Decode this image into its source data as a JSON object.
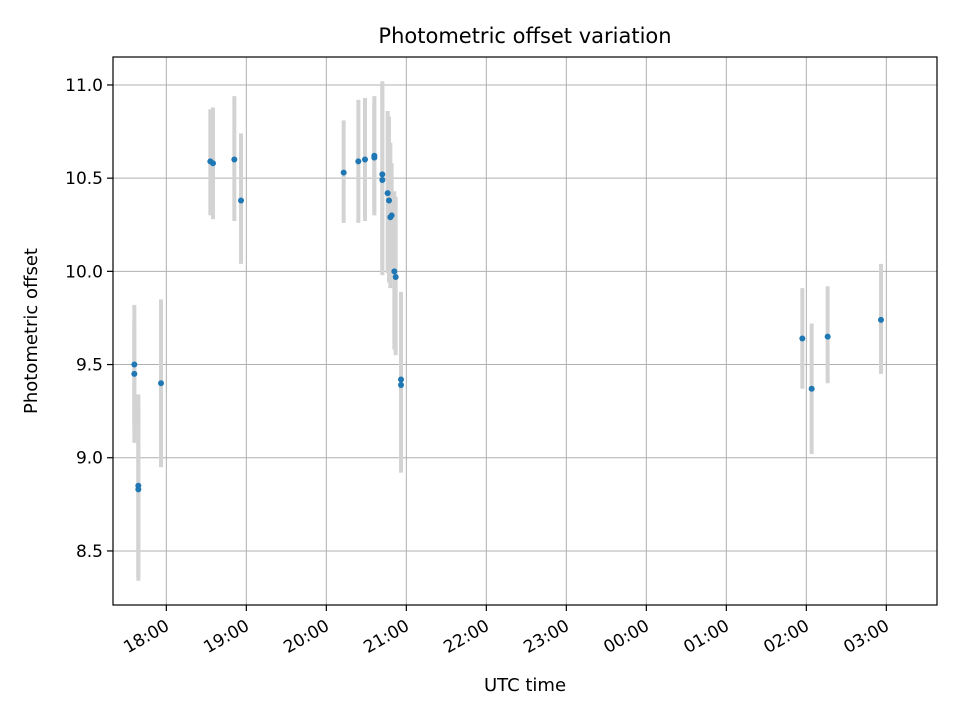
{
  "chart_data": {
    "type": "scatter",
    "title": "Photometric offset variation",
    "xlabel": "UTC time",
    "ylabel": "Photometric offset",
    "grid": true,
    "x_unit": "UTC time (clock times past midnight continue the same night)",
    "xlim": [
      "17:20",
      "27:38"
    ],
    "ylim": [
      8.21,
      11.15
    ],
    "x_ticks": [
      "18:00",
      "19:00",
      "20:00",
      "21:00",
      "22:00",
      "23:00",
      "00:00",
      "01:00",
      "02:00",
      "03:00"
    ],
    "y_ticks": [
      "8.5",
      "9.0",
      "9.5",
      "10.0",
      "10.5",
      "11.0"
    ],
    "colors": {
      "marker": "#1f77b4",
      "errorbar": "#d3d3d3",
      "grid": "#b0b0b0"
    },
    "series": [
      {
        "points": [
          {
            "time": "17:36",
            "y": 9.5,
            "err_low": 9.08,
            "err_high": 9.82
          },
          {
            "time": "17:36",
            "y": 9.45,
            "err_low": 9.17,
            "err_high": 9.73
          },
          {
            "time": "17:39",
            "y": 8.85,
            "err_low": 8.34,
            "err_high": 9.34
          },
          {
            "time": "17:39",
            "y": 8.83,
            "err_low": 8.36,
            "err_high": 9.3
          },
          {
            "time": "17:56",
            "y": 9.4,
            "err_low": 8.95,
            "err_high": 9.85
          },
          {
            "time": "18:33",
            "y": 10.59,
            "err_low": 10.3,
            "err_high": 10.87
          },
          {
            "time": "18:35",
            "y": 10.58,
            "err_low": 10.28,
            "err_high": 10.88
          },
          {
            "time": "18:51",
            "y": 10.6,
            "err_low": 10.27,
            "err_high": 10.94
          },
          {
            "time": "18:56",
            "y": 10.38,
            "err_low": 10.04,
            "err_high": 10.74
          },
          {
            "time": "20:13",
            "y": 10.53,
            "err_low": 10.26,
            "err_high": 10.81
          },
          {
            "time": "20:24",
            "y": 10.59,
            "err_low": 10.26,
            "err_high": 10.92
          },
          {
            "time": "20:29",
            "y": 10.6,
            "err_low": 10.27,
            "err_high": 10.93
          },
          {
            "time": "20:36",
            "y": 10.62,
            "err_low": 10.3,
            "err_high": 10.94
          },
          {
            "time": "20:36",
            "y": 10.61,
            "err_low": 10.31,
            "err_high": 10.9
          },
          {
            "time": "20:42",
            "y": 10.52,
            "err_low": 10.0,
            "err_high": 11.02
          },
          {
            "time": "20:42",
            "y": 10.49,
            "err_low": 9.98,
            "err_high": 11.0
          },
          {
            "time": "20:46",
            "y": 10.42,
            "err_low": 9.99,
            "err_high": 10.86
          },
          {
            "time": "20:47",
            "y": 10.38,
            "err_low": 9.94,
            "err_high": 10.83
          },
          {
            "time": "20:48",
            "y": 10.29,
            "err_low": 9.91,
            "err_high": 10.69
          },
          {
            "time": "20:49",
            "y": 10.3,
            "err_low": 10.02,
            "err_high": 10.58
          },
          {
            "time": "20:51",
            "y": 10.0,
            "err_low": 9.58,
            "err_high": 10.43
          },
          {
            "time": "20:52",
            "y": 9.97,
            "err_low": 9.55,
            "err_high": 10.4
          },
          {
            "time": "20:56",
            "y": 9.42,
            "err_low": 8.92,
            "err_high": 9.89
          },
          {
            "time": "20:56",
            "y": 9.39,
            "err_low": 8.92,
            "err_high": 9.86
          },
          {
            "time": "01:57",
            "y": 9.64,
            "err_low": 9.37,
            "err_high": 9.91
          },
          {
            "time": "02:04",
            "y": 9.37,
            "err_low": 9.02,
            "err_high": 9.72
          },
          {
            "time": "02:16",
            "y": 9.65,
            "err_low": 9.4,
            "err_high": 9.92
          },
          {
            "time": "02:56",
            "y": 9.74,
            "err_low": 9.45,
            "err_high": 10.04
          }
        ]
      }
    ]
  }
}
